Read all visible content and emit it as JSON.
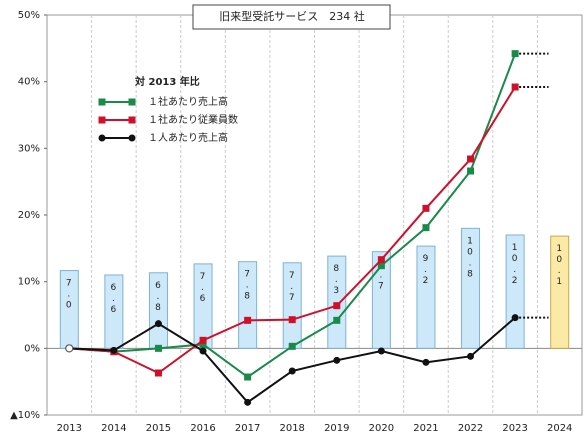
{
  "chart_data": {
    "type": "combo",
    "title": "旧来型受託サービス　234 社",
    "legend_title": "対 2013 年比",
    "categories": [
      "2013",
      "2014",
      "2015",
      "2016",
      "2017",
      "2018",
      "2019",
      "2020",
      "2021",
      "2022",
      "2023",
      "2024"
    ],
    "ylim": [
      -10,
      50
    ],
    "yticks": [
      {
        "value": 50,
        "label": "50%"
      },
      {
        "value": 40,
        "label": "40%"
      },
      {
        "value": 30,
        "label": "30%"
      },
      {
        "value": 20,
        "label": "20%"
      },
      {
        "value": 10,
        "label": "10%"
      },
      {
        "value": 0,
        "label": "0%"
      },
      {
        "value": -10,
        "label": "▲10%"
      }
    ],
    "y2lim": [
      -6,
      30
    ],
    "series": [
      {
        "type": "bar",
        "axis": "y2",
        "colors": [
          "#cde8f8",
          "#cde8f8",
          "#cde8f8",
          "#cde8f8",
          "#cde8f8",
          "#cde8f8",
          "#cde8f8",
          "#cde8f8",
          "#cde8f8",
          "#cde8f8",
          "#cde8f8",
          "#fbeaa6"
        ],
        "values": [
          7.0,
          6.6,
          6.8,
          7.6,
          7.8,
          7.7,
          8.3,
          8.7,
          9.2,
          10.8,
          10.2,
          10.1
        ],
        "value_labels": [
          "7.0",
          "6.6",
          "6.8",
          "7.6",
          "7.8",
          "7.7",
          "8.3",
          "8.7",
          "9.2",
          "10.8",
          "10.2",
          "10.1"
        ]
      },
      {
        "type": "line",
        "name": "１社あたり売上高",
        "color": "#1a8a4a",
        "marker": "square",
        "values": [
          0,
          -0.5,
          0,
          0.6,
          -4.3,
          0.3,
          4.2,
          12.4,
          18.1,
          26.6,
          44.2,
          null
        ]
      },
      {
        "type": "line",
        "name": "１社あたり従業員数",
        "color": "#d0102a",
        "marker": "square",
        "values": [
          0,
          -0.5,
          -3.7,
          1.2,
          4.2,
          4.3,
          6.4,
          13.3,
          21.0,
          28.4,
          39.2,
          null
        ]
      },
      {
        "type": "line",
        "name": "１人あたり売上高",
        "color": "#111111",
        "marker": "circle",
        "values": [
          0,
          -0.3,
          3.7,
          -0.4,
          -8.1,
          -3.4,
          -1.8,
          -0.4,
          -2.1,
          -1.2,
          4.6,
          null
        ]
      }
    ]
  }
}
